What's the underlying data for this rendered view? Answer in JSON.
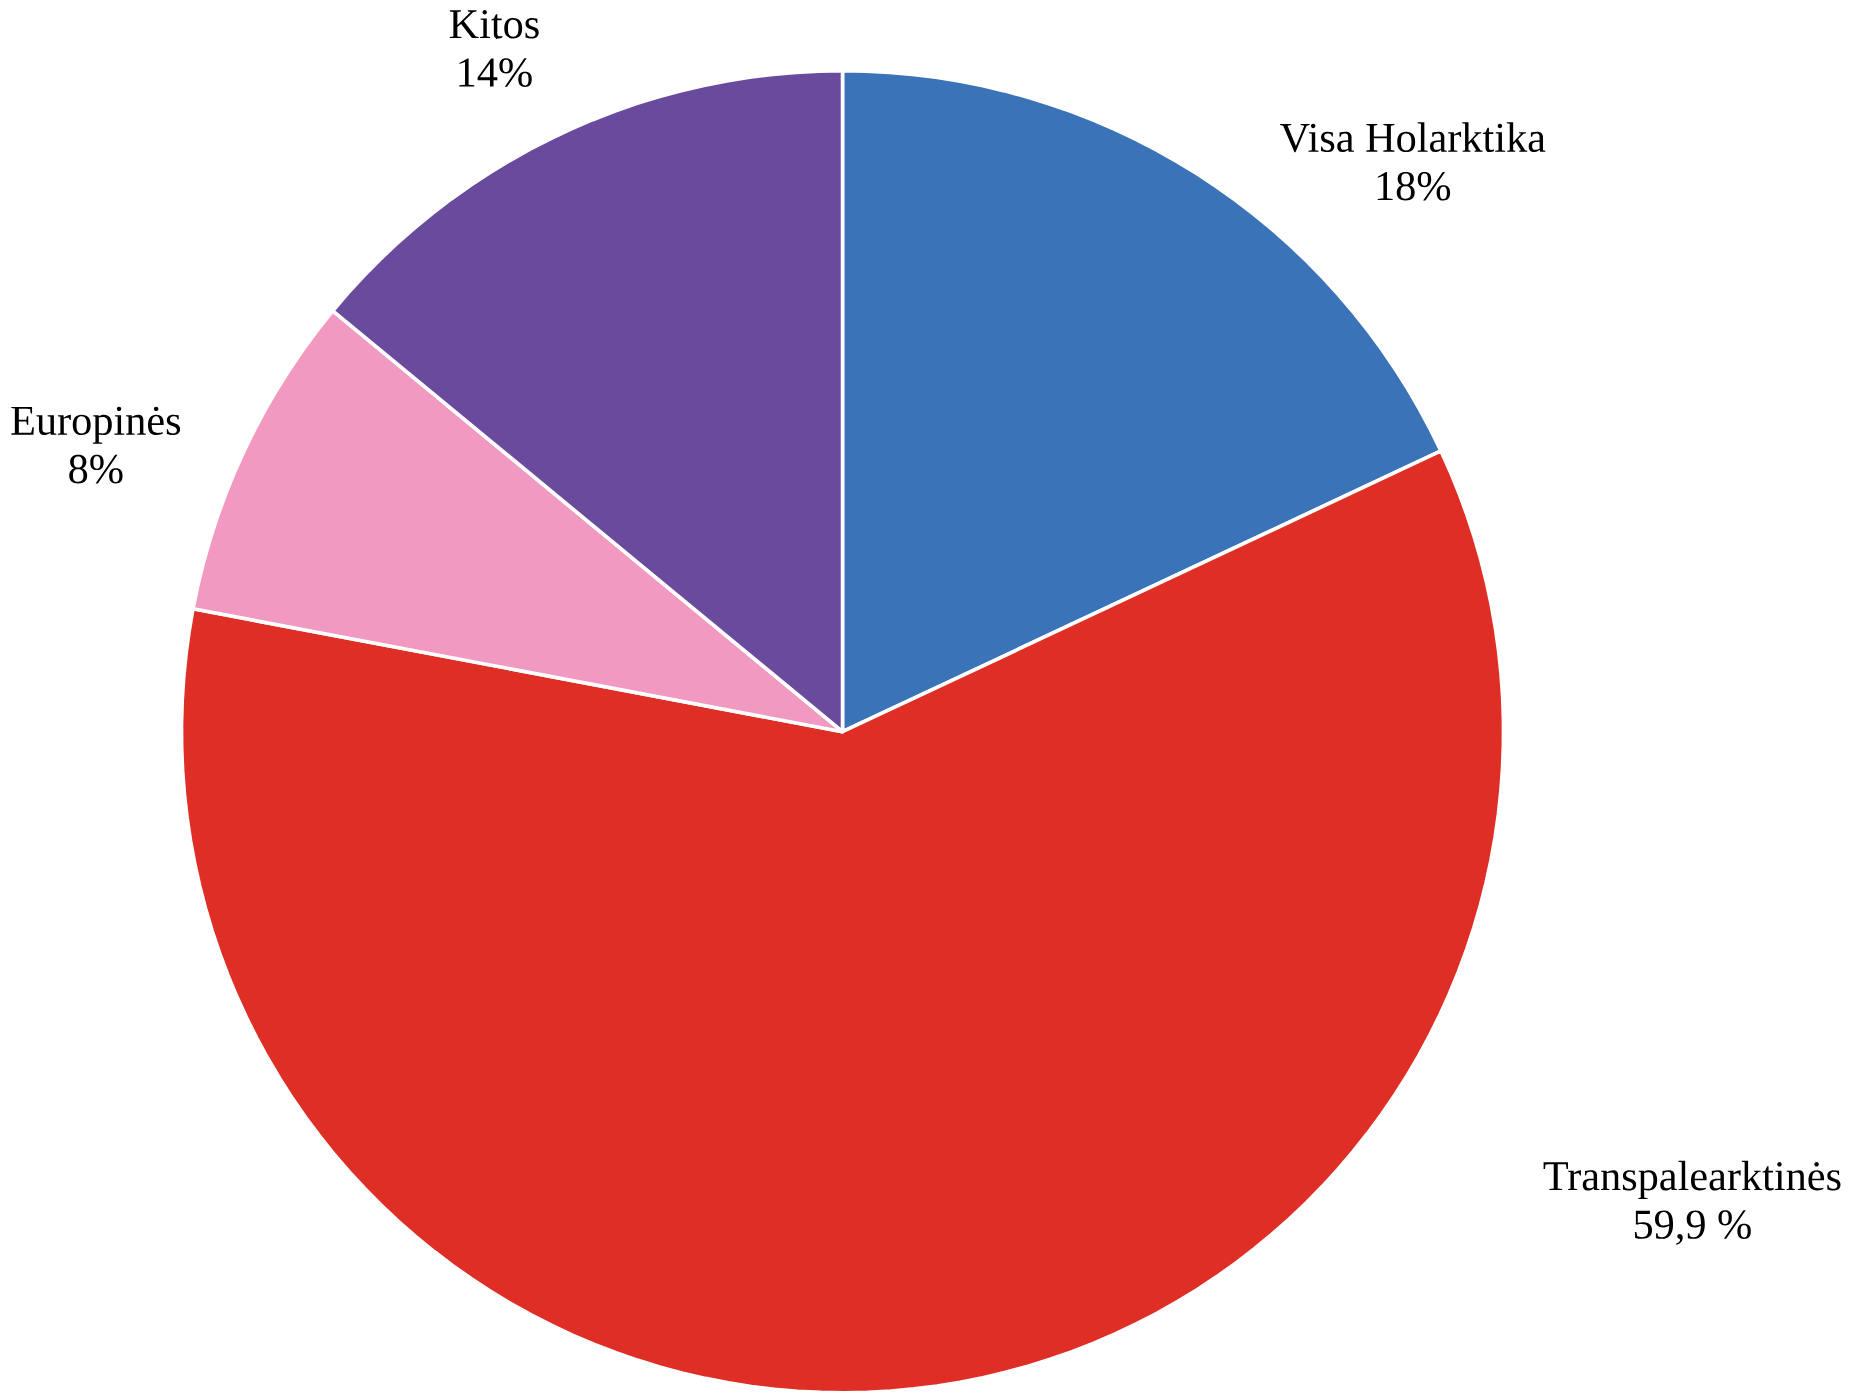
{
  "chart_data": {
    "type": "pie",
    "categories": [
      "Visa Holarktika",
      "Transpalearktinės",
      "Europinės",
      "Kitos"
    ],
    "values": [
      18,
      59.9,
      8,
      14
    ],
    "value_labels": [
      "18%",
      "59,9 %",
      "8%",
      "14%"
    ],
    "colors": [
      "#3a73b8",
      "#de2e26",
      "#f199c0",
      "#6a4a9c"
    ]
  }
}
